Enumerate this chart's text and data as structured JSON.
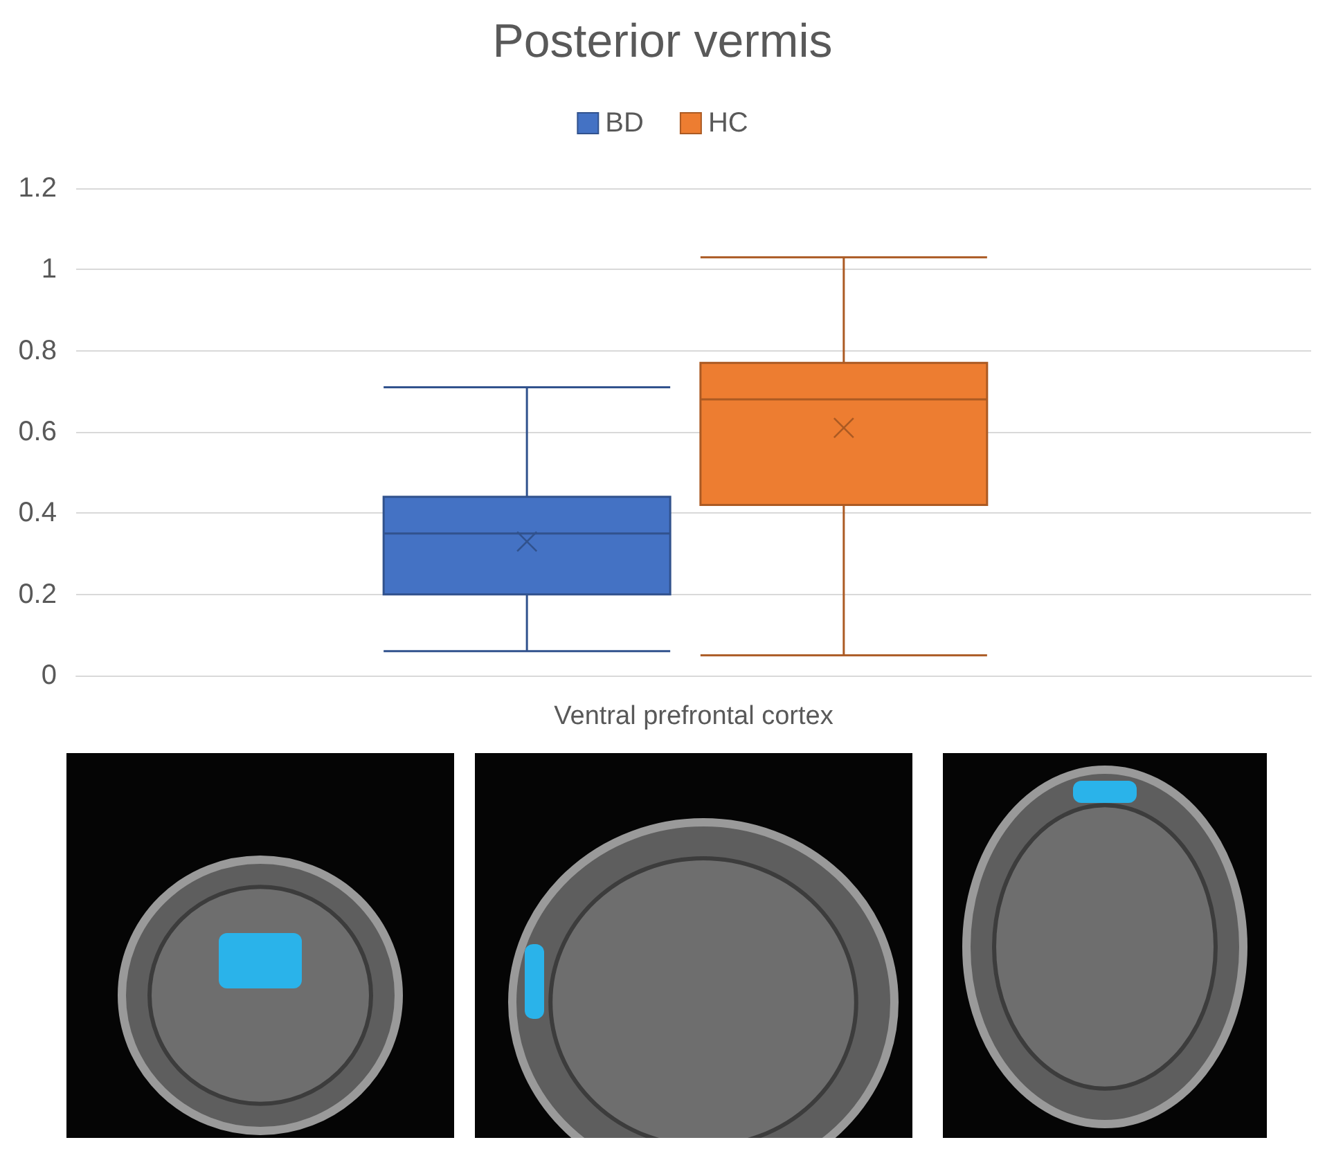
{
  "chart_data": {
    "type": "box",
    "title": "Posterior vermis",
    "categories": [
      "Ventral prefrontal cortex"
    ],
    "series": [
      {
        "name": "BD",
        "color": "#4472c4",
        "boxes": [
          {
            "low": 0.06,
            "q1": 0.2,
            "median": 0.35,
            "q3": 0.44,
            "high": 0.71,
            "mean": 0.33
          }
        ]
      },
      {
        "name": "HC",
        "color": "#ed7d31",
        "boxes": [
          {
            "low": 0.05,
            "q1": 0.42,
            "median": 0.68,
            "q3": 0.77,
            "high": 1.03,
            "mean": 0.61
          }
        ]
      }
    ],
    "ylim": [
      0,
      1.2
    ],
    "yticks": [
      0,
      0.2,
      0.4,
      0.6,
      0.8,
      1,
      1.2
    ],
    "grid": "y",
    "legend": "top"
  }
}
